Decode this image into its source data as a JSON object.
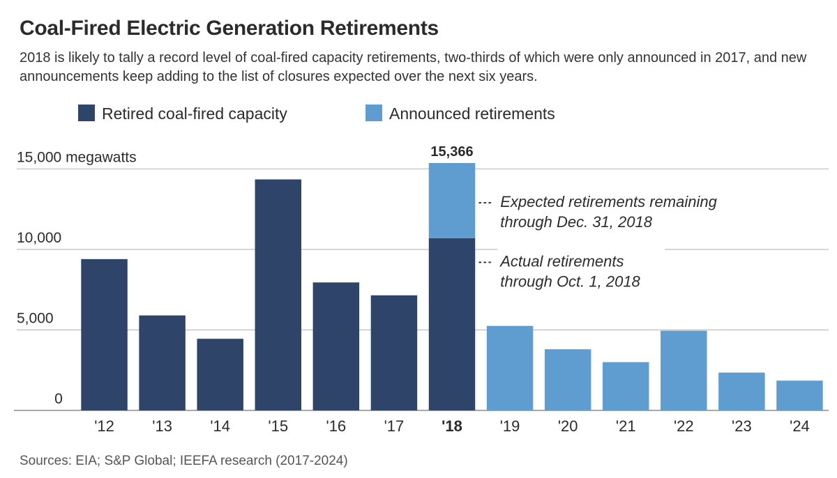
{
  "chart_data": {
    "type": "bar",
    "title": "Coal-Fired Electric Generation Retirements",
    "subtitle": "2018 is likely to tally a record level of coal-fired capacity retirements, two-thirds of which were only announced in 2017, and new announcements keep adding to the list of closures expected over the next six years.",
    "legend": {
      "placement": "top-left",
      "items": [
        {
          "name": "Retired coal-fired capacity",
          "color": "#2e4468"
        },
        {
          "name": "Announced retirements",
          "color": "#5f9ccf"
        }
      ]
    },
    "unit_label": "15,000 megawatts",
    "y_ticks": [
      {
        "value": 0,
        "label": "0"
      },
      {
        "value": 5000,
        "label": "5,000"
      },
      {
        "value": 10000,
        "label": "10,000"
      },
      {
        "value": 15000,
        "label": "15,000 megawatts"
      }
    ],
    "ylim": [
      0,
      15366
    ],
    "grid": true,
    "categories": [
      "'12",
      "'13",
      "'14",
      "'15",
      "'16",
      "'17",
      "'18",
      "'19",
      "'20",
      "'21",
      "'22",
      "'23",
      "'24"
    ],
    "bold_category": "'18",
    "series": [
      {
        "name": "Retired coal-fired capacity",
        "color": "#2e4468",
        "values": [
          9400,
          5900,
          4450,
          14350,
          7950,
          7150,
          10700,
          0,
          0,
          0,
          0,
          0,
          0
        ]
      },
      {
        "name": "Announced retirements",
        "color": "#5f9ccf",
        "values": [
          0,
          0,
          0,
          0,
          0,
          0,
          4666,
          5250,
          3800,
          3000,
          4950,
          2350,
          1850
        ]
      }
    ],
    "data_labels": [
      {
        "category": "'18",
        "label": "15,366"
      }
    ],
    "annotations": [
      {
        "lines": [
          "Expected retirements remaining",
          "through Dec. 31, 2018"
        ],
        "target_category": "'18",
        "target_value": 12900
      },
      {
        "lines": [
          "Actual retirements",
          "through Oct. 1, 2018"
        ],
        "target_category": "'18",
        "target_value": 9200
      }
    ]
  },
  "source": "Sources: EIA; S&P Global; IEEFA research (2017-2024)",
  "colors": {
    "grid": "#bdbdbd",
    "axis": "#8c8c8c",
    "text": "#2b2b2b",
    "background": "#ffffff"
  }
}
